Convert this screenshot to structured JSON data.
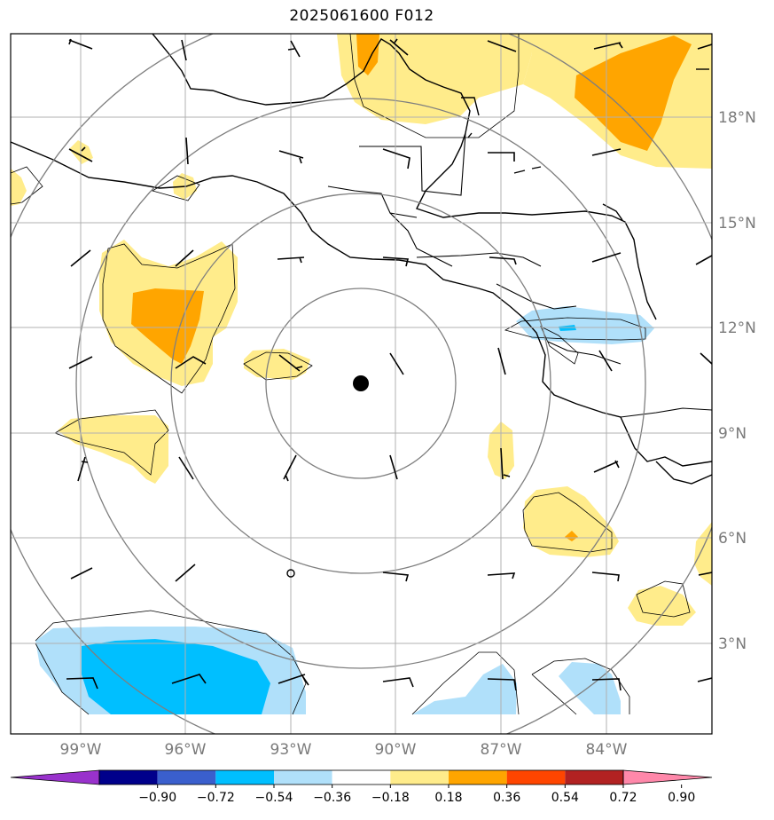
{
  "title": "2025061600 F012",
  "lat_labels": [
    "18°N",
    "15°N",
    "12°N",
    "9°N",
    "6°N",
    "3°N"
  ],
  "lon_labels": [
    "99°W",
    "96°W",
    "93°W",
    "90°W",
    "87°W",
    "84°W"
  ],
  "colorbar": {
    "ticks": [
      "−0.90",
      "−0.72",
      "−0.54",
      "−0.36",
      "−0.18",
      "0.18",
      "0.36",
      "0.54",
      "0.72",
      "0.90"
    ],
    "colors": [
      "#9932cc",
      "#00008b",
      "#3a5fcd",
      "#00bfff",
      "#b0e0fa",
      "#ffffff",
      "#ffec8b",
      "#ffa500",
      "#ff4500",
      "#b22222",
      "#ff88aa"
    ]
  },
  "center_marker": "storm-center",
  "range_rings": "concentric-circles"
}
